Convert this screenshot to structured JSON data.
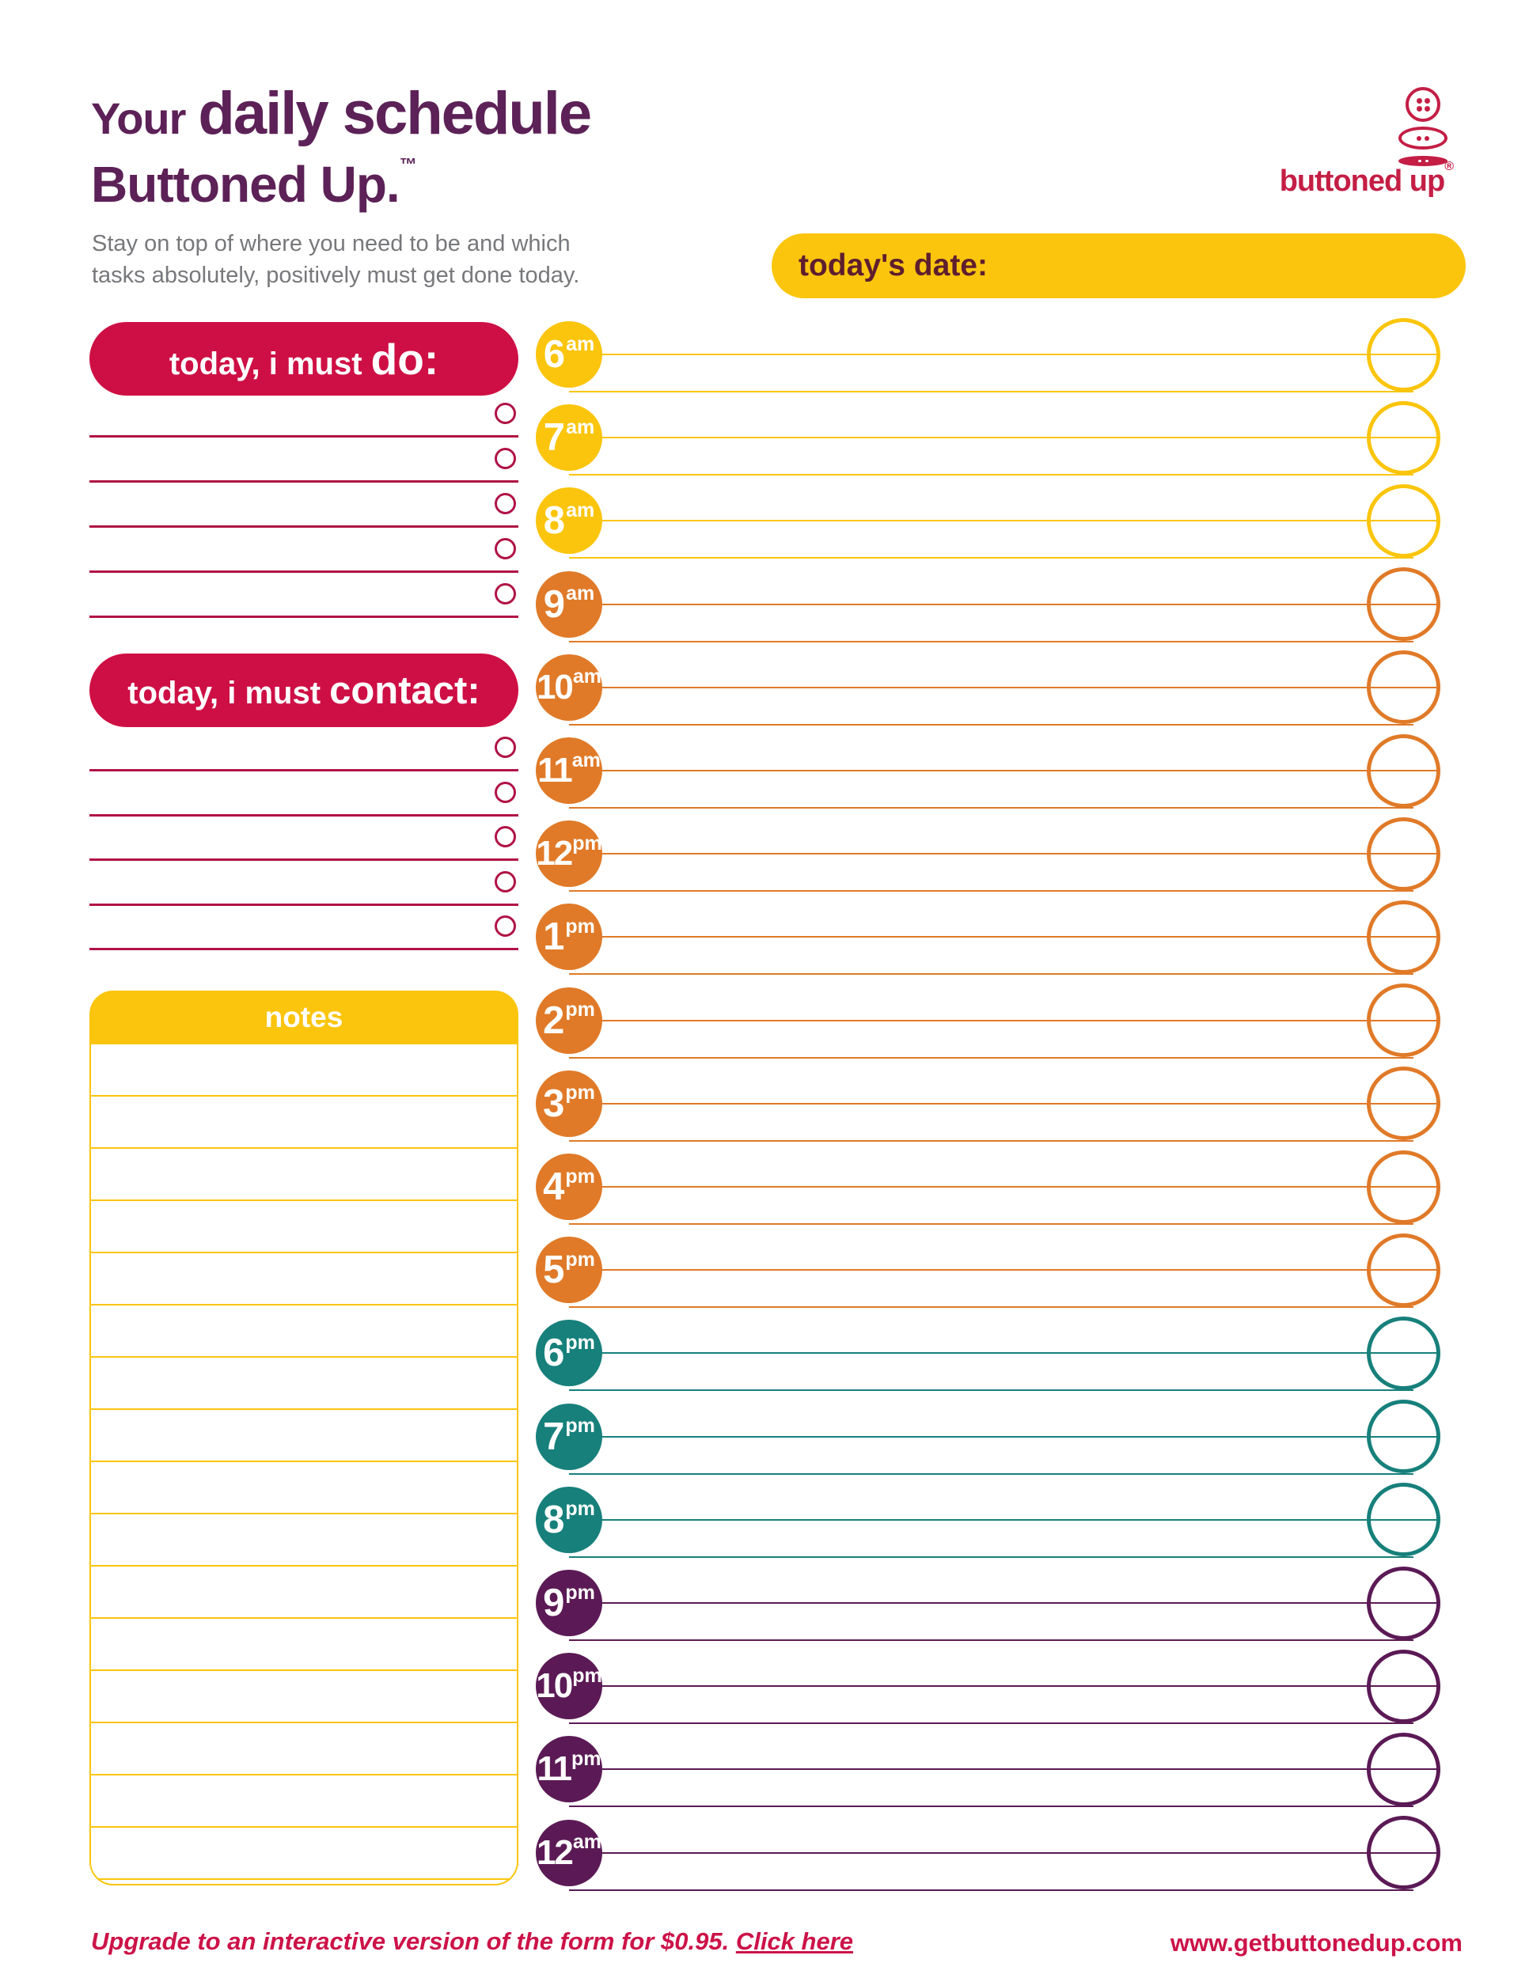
{
  "header": {
    "title_regular": "Your",
    "title_bold": "daily schedule",
    "brand": "Buttoned Up.",
    "brand_tm": "™",
    "description_line1": "Stay on top of where you need to be and which",
    "description_line2": "tasks absolutely, positively must get done today.",
    "logo": {
      "text": "buttoned up",
      "registered": "®"
    }
  },
  "date_bar": {
    "label": "today's date:"
  },
  "sections": {
    "do": {
      "title_prefix": "today, i must ",
      "title_bold": "do:",
      "line_count": 5
    },
    "contact": {
      "title_prefix": "today, i must ",
      "title_bold": "contact:",
      "line_count": 5
    },
    "notes": {
      "title": "notes"
    }
  },
  "schedule": {
    "hours": [
      {
        "num": "6",
        "suffix": "am",
        "color": "yellow"
      },
      {
        "num": "7",
        "suffix": "am",
        "color": "yellow"
      },
      {
        "num": "8",
        "suffix": "am",
        "color": "yellow"
      },
      {
        "num": "9",
        "suffix": "am",
        "color": "orange"
      },
      {
        "num": "10",
        "suffix": "am",
        "color": "orange"
      },
      {
        "num": "11",
        "suffix": "am",
        "color": "orange"
      },
      {
        "num": "12",
        "suffix": "pm",
        "color": "orange"
      },
      {
        "num": "1",
        "suffix": "pm",
        "color": "orange"
      },
      {
        "num": "2",
        "suffix": "pm",
        "color": "orange"
      },
      {
        "num": "3",
        "suffix": "pm",
        "color": "orange"
      },
      {
        "num": "4",
        "suffix": "pm",
        "color": "orange"
      },
      {
        "num": "5",
        "suffix": "pm",
        "color": "orange"
      },
      {
        "num": "6",
        "suffix": "pm",
        "color": "teal"
      },
      {
        "num": "7",
        "suffix": "pm",
        "color": "teal"
      },
      {
        "num": "8",
        "suffix": "pm",
        "color": "teal"
      },
      {
        "num": "9",
        "suffix": "pm",
        "color": "purple"
      },
      {
        "num": "10",
        "suffix": "pm",
        "color": "purple"
      },
      {
        "num": "11",
        "suffix": "pm",
        "color": "purple"
      },
      {
        "num": "12",
        "suffix": "am",
        "color": "purple"
      }
    ]
  },
  "footer": {
    "upgrade_text": "Upgrade to an interactive version of the form for $0.95. ",
    "upgrade_link": "Click here",
    "website": "www.getbuttonedup.com"
  },
  "colors": {
    "yellow": "#FBC50D",
    "orange": "#E07A28",
    "teal": "#17807B",
    "purple": "#5B1A55",
    "crimson": "#CE0F45",
    "crimson_line": "#B01345",
    "logo_red": "#C41E45",
    "title_purple": "#5C2157",
    "text_gray": "#77787B",
    "date_text": "#5E1E2E",
    "footer_red": "#CC1348"
  }
}
